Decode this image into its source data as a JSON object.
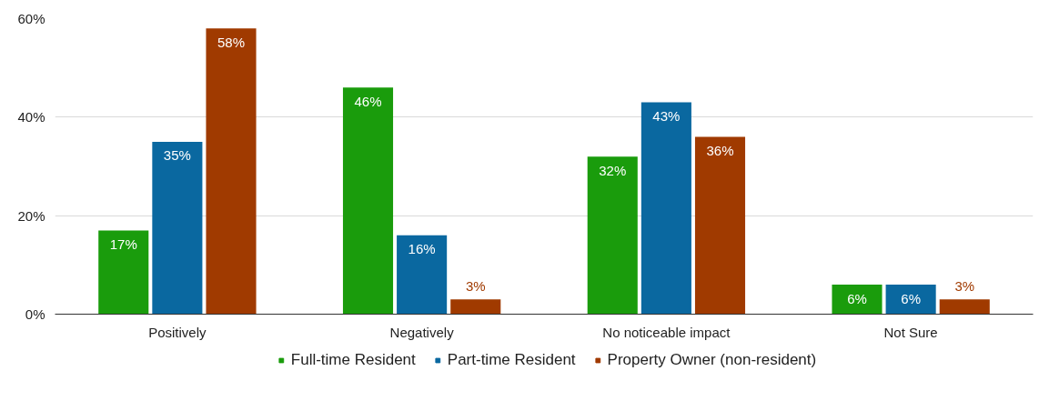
{
  "chart_data": {
    "type": "bar",
    "categories": [
      "Positively",
      "Negatively",
      "No noticeable impact",
      "Not Sure"
    ],
    "series": [
      {
        "name": "Full-time Resident",
        "color": "#1a9c0c",
        "values": [
          17,
          46,
          32,
          6
        ],
        "value_labels": [
          "17%",
          "46%",
          "32%",
          "6%"
        ]
      },
      {
        "name": "Part-time Resident",
        "color": "#0a68a0",
        "values": [
          35,
          16,
          43,
          6
        ],
        "value_labels": [
          "35%",
          "16%",
          "43%",
          "6%"
        ]
      },
      {
        "name": "Property Owner (non-resident)",
        "color": "#a03a00",
        "values": [
          58,
          3,
          36,
          3
        ],
        "value_labels": [
          "58%",
          "3%",
          "36%",
          "3%"
        ]
      }
    ],
    "ylim": [
      0,
      60
    ],
    "yticks": [
      {
        "value": 0,
        "label": "0%"
      },
      {
        "value": 20,
        "label": "20%"
      },
      {
        "value": 40,
        "label": "40%"
      },
      {
        "value": 60,
        "label": "60%"
      }
    ],
    "grid": "y",
    "legend": "bottom"
  }
}
